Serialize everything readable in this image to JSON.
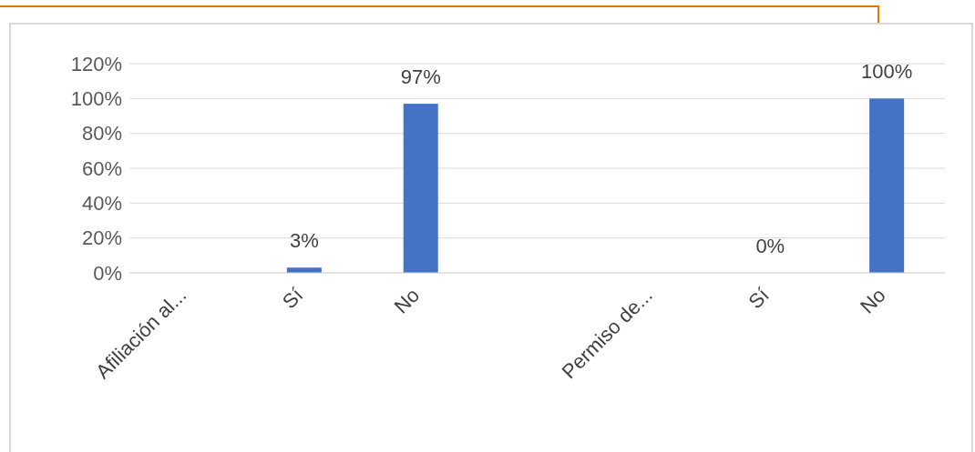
{
  "chart_data": {
    "type": "bar",
    "categories": [
      "Afiliación al...",
      "Sí",
      "No",
      null,
      "Permiso de...",
      "Sí",
      "No"
    ],
    "values": [
      null,
      3,
      97,
      null,
      null,
      0,
      100
    ],
    "value_labels": [
      null,
      "3%",
      "97%",
      null,
      null,
      "0%",
      "100%"
    ],
    "color": "#4472c4",
    "ylim": [
      0,
      120
    ],
    "yticks": [
      {
        "value": 0,
        "label": "0%"
      },
      {
        "value": 20,
        "label": "20%"
      },
      {
        "value": 40,
        "label": "40%"
      },
      {
        "value": 60,
        "label": "60%"
      },
      {
        "value": 80,
        "label": "80%"
      },
      {
        "value": 100,
        "label": "100%"
      },
      {
        "value": 120,
        "label": "120%"
      }
    ],
    "grid": "y",
    "legend": false
  }
}
